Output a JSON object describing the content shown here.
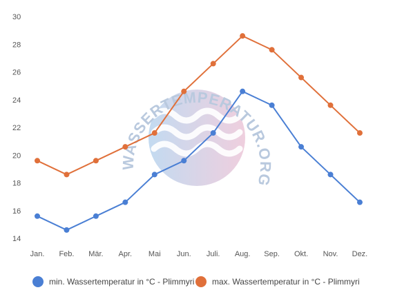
{
  "watermark": {
    "text": "WASSERTEMPERATUR.ORG"
  },
  "chart_data": {
    "type": "line",
    "categories": [
      "Jan.",
      "Feb.",
      "Mär.",
      "Apr.",
      "Mai",
      "Jun.",
      "Juli.",
      "Aug.",
      "Sep.",
      "Okt.",
      "Nov.",
      "Dez."
    ],
    "series": [
      {
        "name": "min. Wassertemperatur in °C - Plimmyri",
        "color": "#4a7fd4",
        "values": [
          15.6,
          14.6,
          15.6,
          16.6,
          18.6,
          19.6,
          21.6,
          24.6,
          23.6,
          20.6,
          18.6,
          16.6
        ]
      },
      {
        "name": "max. Wassertemperatur in °C - Plimmyri",
        "color": "#e0703a",
        "values": [
          19.6,
          18.6,
          19.6,
          20.6,
          21.6,
          24.6,
          26.6,
          28.6,
          27.6,
          25.6,
          23.6,
          21.6
        ]
      }
    ],
    "ylim": [
      14,
      30
    ],
    "yticks": [
      14,
      16,
      18,
      20,
      22,
      24,
      26,
      28,
      30
    ],
    "title": "",
    "xlabel": "",
    "ylabel": "",
    "grid": false,
    "legend": "bottom"
  }
}
